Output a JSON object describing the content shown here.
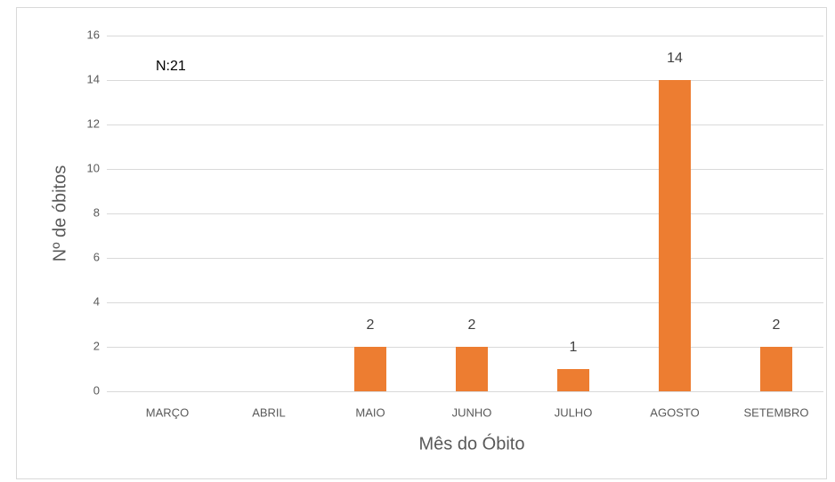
{
  "chart_data": {
    "type": "bar",
    "annotation": "N:21",
    "xlabel": "Mês do Óbito",
    "ylabel": "Nº de óbitos",
    "categories": [
      "MARÇO",
      "ABRIL",
      "MAIO",
      "JUNHO",
      "JULHO",
      "AGOSTO",
      "SETEMBRO"
    ],
    "values": [
      0,
      0,
      2,
      2,
      1,
      14,
      2
    ],
    "color": "#ed7d31",
    "ylim": [
      0,
      16
    ],
    "yticks": [
      0,
      2,
      4,
      6,
      8,
      10,
      12,
      14,
      16
    ],
    "grid": true
  }
}
